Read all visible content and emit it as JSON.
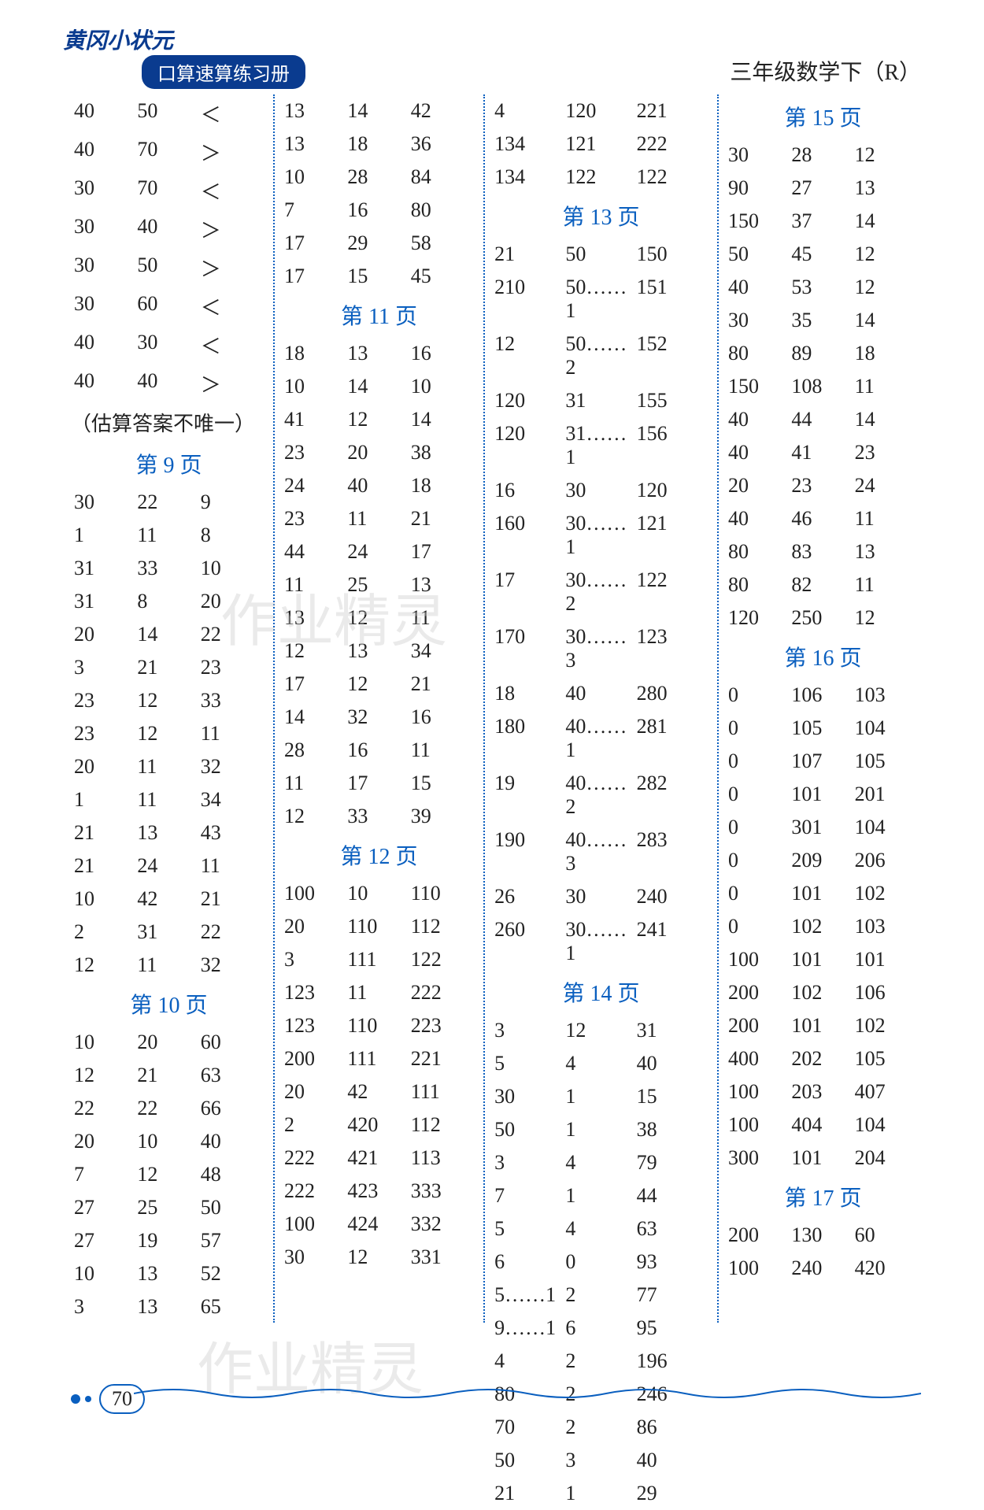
{
  "header": {
    "logo_text": "黄冈小状元",
    "subtitle": "口算速算练习册",
    "right_text": "三年级数学下（R）"
  },
  "page_number": "70",
  "watermark": "作业精灵",
  "note_text": "（估算答案不唯一）",
  "columns": {
    "col1": {
      "sections": [
        {
          "title": null,
          "rows": [
            [
              "40",
              "50",
              "＜"
            ],
            [
              "40",
              "70",
              "＞"
            ],
            [
              "30",
              "70",
              "＜"
            ],
            [
              "30",
              "40",
              "＞"
            ],
            [
              "30",
              "50",
              "＞"
            ],
            [
              "30",
              "60",
              "＜"
            ],
            [
              "40",
              "30",
              "＜"
            ],
            [
              "40",
              "40",
              "＞"
            ]
          ]
        },
        {
          "note": true
        },
        {
          "title": "第 9 页",
          "rows": [
            [
              "30",
              "22",
              "9"
            ],
            [
              "1",
              "11",
              "8"
            ],
            [
              "31",
              "33",
              "10"
            ],
            [
              "31",
              "8",
              "20"
            ],
            [
              "20",
              "14",
              "22"
            ],
            [
              "3",
              "21",
              "23"
            ],
            [
              "23",
              "12",
              "33"
            ],
            [
              "23",
              "12",
              "11"
            ],
            [
              "20",
              "11",
              "32"
            ],
            [
              "1",
              "11",
              "34"
            ],
            [
              "21",
              "13",
              "43"
            ],
            [
              "21",
              "24",
              "11"
            ],
            [
              "10",
              "42",
              "21"
            ],
            [
              "2",
              "31",
              "22"
            ],
            [
              "12",
              "11",
              "32"
            ]
          ]
        },
        {
          "title": "第 10 页",
          "rows": [
            [
              "10",
              "20",
              "60"
            ],
            [
              "12",
              "21",
              "63"
            ],
            [
              "22",
              "22",
              "66"
            ],
            [
              "20",
              "10",
              "40"
            ],
            [
              "7",
              "12",
              "48"
            ],
            [
              "27",
              "25",
              "50"
            ],
            [
              "27",
              "19",
              "57"
            ],
            [
              "10",
              "13",
              "52"
            ],
            [
              "3",
              "13",
              "65"
            ]
          ]
        }
      ]
    },
    "col2": {
      "sections": [
        {
          "title": null,
          "rows": [
            [
              "13",
              "14",
              "42"
            ],
            [
              "13",
              "18",
              "36"
            ],
            [
              "10",
              "28",
              "84"
            ],
            [
              "7",
              "16",
              "80"
            ],
            [
              "17",
              "29",
              "58"
            ],
            [
              "17",
              "15",
              "45"
            ]
          ]
        },
        {
          "title": "第 11 页",
          "rows": [
            [
              "18",
              "13",
              "16"
            ],
            [
              "10",
              "14",
              "10"
            ],
            [
              "41",
              "12",
              "14"
            ],
            [
              "23",
              "20",
              "38"
            ],
            [
              "24",
              "40",
              "18"
            ],
            [
              "23",
              "11",
              "21"
            ],
            [
              "44",
              "24",
              "17"
            ],
            [
              "11",
              "25",
              "13"
            ],
            [
              "13",
              "12",
              "11"
            ],
            [
              "12",
              "13",
              "34"
            ],
            [
              "17",
              "12",
              "21"
            ],
            [
              "14",
              "32",
              "16"
            ],
            [
              "28",
              "16",
              "11"
            ],
            [
              "11",
              "17",
              "15"
            ],
            [
              "12",
              "33",
              "39"
            ]
          ]
        },
        {
          "title": "第 12 页",
          "rows": [
            [
              "100",
              "10",
              "110"
            ],
            [
              "20",
              "110",
              "112"
            ],
            [
              "3",
              "111",
              "122"
            ],
            [
              "123",
              "11",
              "222"
            ],
            [
              "123",
              "110",
              "223"
            ],
            [
              "200",
              "111",
              "221"
            ],
            [
              "20",
              "42",
              "111"
            ],
            [
              "2",
              "420",
              "112"
            ],
            [
              "222",
              "421",
              "113"
            ],
            [
              "222",
              "423",
              "333"
            ],
            [
              "100",
              "424",
              "332"
            ],
            [
              "30",
              "12",
              "331"
            ]
          ]
        }
      ]
    },
    "col3": {
      "sections": [
        {
          "title": null,
          "rows": [
            [
              "4",
              "120",
              "221"
            ],
            [
              "134",
              "121",
              "222"
            ],
            [
              "134",
              "122",
              "122"
            ]
          ]
        },
        {
          "title": "第 13 页",
          "rows": [
            [
              "21",
              "50",
              "150"
            ],
            [
              "210",
              "50……1",
              "151"
            ],
            [
              "12",
              "50……2",
              "152"
            ],
            [
              "120",
              "31",
              "155"
            ],
            [
              "120",
              "31……1",
              "156"
            ],
            [
              "16",
              "30",
              "120"
            ],
            [
              "160",
              "30……1",
              "121"
            ],
            [
              "17",
              "30……2",
              "122"
            ],
            [
              "170",
              "30……3",
              "123"
            ],
            [
              "18",
              "40",
              "280"
            ],
            [
              "180",
              "40……1",
              "281"
            ],
            [
              "19",
              "40……2",
              "282"
            ],
            [
              "190",
              "40……3",
              "283"
            ],
            [
              "26",
              "30",
              "240"
            ],
            [
              "260",
              "30……1",
              "241"
            ]
          ]
        },
        {
          "title": "第 14 页",
          "rows": [
            [
              "3",
              "12",
              "31"
            ],
            [
              "5",
              "4",
              "40"
            ],
            [
              "30",
              "1",
              "15"
            ],
            [
              "50",
              "1",
              "38"
            ],
            [
              "3",
              "4",
              "79"
            ],
            [
              "7",
              "1",
              "44"
            ],
            [
              "5",
              "4",
              "63"
            ],
            [
              "6",
              "0",
              "93"
            ],
            [
              "5……1",
              "2",
              "77"
            ],
            [
              "9……1",
              "6",
              "95"
            ],
            [
              "4",
              "2",
              "196"
            ],
            [
              "80",
              "2",
              "246"
            ],
            [
              "70",
              "2",
              "86"
            ],
            [
              "50",
              "3",
              "40"
            ],
            [
              "21",
              "1",
              "29"
            ]
          ]
        }
      ]
    },
    "col4": {
      "sections": [
        {
          "title": "第 15 页",
          "rows": [
            [
              "30",
              "28",
              "12"
            ],
            [
              "90",
              "27",
              "13"
            ],
            [
              "150",
              "37",
              "14"
            ],
            [
              "50",
              "45",
              "12"
            ],
            [
              "40",
              "53",
              "12"
            ],
            [
              "30",
              "35",
              "14"
            ],
            [
              "80",
              "89",
              "18"
            ],
            [
              "150",
              "108",
              "11"
            ],
            [
              "40",
              "44",
              "14"
            ],
            [
              "40",
              "41",
              "23"
            ],
            [
              "20",
              "23",
              "24"
            ],
            [
              "40",
              "46",
              "11"
            ],
            [
              "80",
              "83",
              "13"
            ],
            [
              "80",
              "82",
              "11"
            ],
            [
              "120",
              "250",
              "12"
            ]
          ]
        },
        {
          "title": "第 16 页",
          "rows": [
            [
              "0",
              "106",
              "103"
            ],
            [
              "0",
              "105",
              "104"
            ],
            [
              "0",
              "107",
              "105"
            ],
            [
              "0",
              "101",
              "201"
            ],
            [
              "0",
              "301",
              "104"
            ],
            [
              "0",
              "209",
              "206"
            ],
            [
              "0",
              "101",
              "102"
            ],
            [
              "0",
              "102",
              "103"
            ],
            [
              "100",
              "101",
              "101"
            ],
            [
              "200",
              "102",
              "106"
            ],
            [
              "200",
              "101",
              "102"
            ],
            [
              "400",
              "202",
              "105"
            ],
            [
              "100",
              "203",
              "407"
            ],
            [
              "100",
              "404",
              "104"
            ],
            [
              "300",
              "101",
              "204"
            ]
          ]
        },
        {
          "title": "第 17 页",
          "rows": [
            [
              "200",
              "130",
              "60"
            ],
            [
              "100",
              "240",
              "420"
            ]
          ]
        }
      ]
    }
  }
}
